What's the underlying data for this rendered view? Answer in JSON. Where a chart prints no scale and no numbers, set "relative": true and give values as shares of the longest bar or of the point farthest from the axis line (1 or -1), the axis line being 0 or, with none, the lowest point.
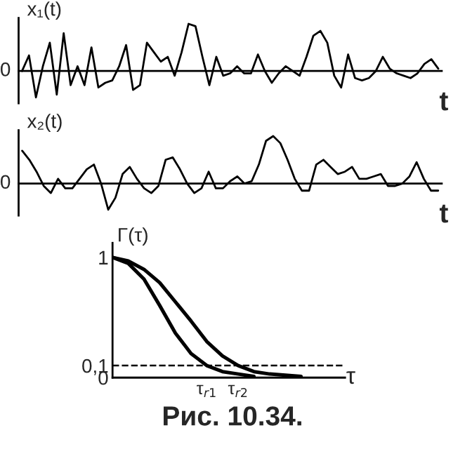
{
  "chart_data": [
    {
      "type": "line",
      "relative": true,
      "ylabel": "x₁(t)",
      "xlabel": "t",
      "annotations": [
        "0"
      ],
      "categories": [
        null,
        null,
        null,
        null,
        null,
        null,
        null,
        null,
        null,
        null,
        null,
        null,
        null,
        null,
        null,
        null,
        null,
        null,
        null,
        null,
        null,
        null,
        null,
        null,
        null,
        null,
        null,
        null,
        null,
        null,
        null,
        null,
        null,
        null,
        null,
        null,
        null,
        null,
        null,
        null,
        null,
        null,
        null,
        null,
        null,
        null,
        null,
        null,
        null,
        null,
        null,
        null,
        null,
        null,
        null,
        null,
        null,
        null,
        null,
        null,
        null
      ],
      "series": [
        {
          "color": "#000000",
          "values": [
            0,
            0.33,
            -0.56,
            0.1,
            0.6,
            -0.5,
            0.8,
            -0.3,
            0.1,
            -0.3,
            0.5,
            -0.35,
            -0.25,
            -0.2,
            0.1,
            0.55,
            -0.4,
            -0.3,
            0.6,
            0.4,
            0.2,
            0.3,
            -0.1,
            0.4,
            1.0,
            0.95,
            0.3,
            -0.3,
            0.3,
            -0.1,
            -0.05,
            0.1,
            -0.05,
            -0.05,
            0.35,
            0,
            -0.25,
            -0.05,
            0.1,
            0,
            -0.1,
            0.3,
            0.75,
            0.85,
            0.6,
            -0.1,
            -0.35,
            0.35,
            -0.15,
            -0.2,
            -0.15,
            0,
            0.3,
            0.05,
            -0.05,
            -0.1,
            -0.15,
            -0.05,
            0.15,
            0.25,
            0.05
          ]
        }
      ]
    },
    {
      "type": "line",
      "relative": true,
      "ylabel": "x₂(t)",
      "xlabel": "t",
      "annotations": [
        "0"
      ],
      "categories": [
        null,
        null,
        null,
        null,
        null,
        null,
        null,
        null,
        null,
        null,
        null,
        null,
        null,
        null,
        null,
        null,
        null,
        null,
        null,
        null,
        null,
        null,
        null,
        null,
        null,
        null,
        null,
        null,
        null,
        null,
        null,
        null,
        null,
        null,
        null,
        null,
        null,
        null,
        null,
        null,
        null,
        null,
        null,
        null,
        null,
        null,
        null,
        null,
        null,
        null,
        null,
        null,
        null,
        null,
        null,
        null,
        null,
        null,
        null
      ],
      "series": [
        {
          "color": "#000000",
          "values": [
            0.69,
            0.5,
            0.25,
            -0.05,
            -0.2,
            0.1,
            -0.1,
            -0.1,
            0.1,
            0.3,
            0.4,
            0,
            -0.55,
            -0.3,
            0.2,
            0.35,
            0.1,
            -0.1,
            -0.2,
            -0.05,
            0.5,
            0.55,
            0.3,
            0,
            -0.2,
            -0.1,
            0.25,
            -0.1,
            -0.1,
            0.05,
            0.15,
            0,
            0.05,
            0.4,
            0.9,
            1.0,
            0.85,
            0.5,
            0.1,
            -0.15,
            -0.15,
            0.4,
            0.5,
            0.35,
            0.2,
            0.25,
            0.35,
            0.1,
            0.1,
            0.15,
            0.2,
            -0.05,
            -0.05,
            0,
            0.15,
            0.45,
            0.1,
            -0.15,
            -0.15
          ]
        }
      ]
    },
    {
      "type": "line",
      "ylabel": "Γ(τ)",
      "xlabel": "τ",
      "ylim": [
        0,
        1.12
      ],
      "categories": [
        null,
        null,
        null,
        null,
        null,
        null,
        "τ$_{r1}$",
        null,
        "τ$_{r2}$",
        null,
        null,
        null,
        null,
        null,
        null
      ],
      "yticks": [
        0,
        {
          "value": 0.1,
          "label": "0,1"
        },
        1
      ],
      "series": [
        {
          "color": "#000000",
          "values": [
            1,
            0.95,
            0.82,
            0.6,
            0.37,
            0.2,
            0.1,
            0.05,
            0.03,
            0.01,
            null,
            null,
            null,
            null,
            null
          ]
        },
        {
          "color": "#000000",
          "values": [
            1,
            0.97,
            0.9,
            0.79,
            0.63,
            0.47,
            0.3,
            0.18,
            0.1,
            0.05,
            0.03,
            0.02,
            0.01,
            null,
            null
          ]
        }
      ],
      "ref_lines": [
        {
          "axis": "y",
          "value": 0.1,
          "line_style": "dashed",
          "color": "#000000"
        }
      ],
      "annotations": [
        "Рис. 10.34."
      ]
    }
  ]
}
